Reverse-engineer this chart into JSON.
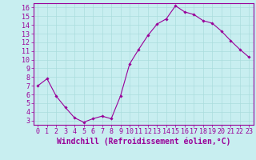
{
  "x": [
    0,
    1,
    2,
    3,
    4,
    5,
    6,
    7,
    8,
    9,
    10,
    11,
    12,
    13,
    14,
    15,
    16,
    17,
    18,
    19,
    20,
    21,
    22,
    23
  ],
  "y": [
    7.0,
    7.8,
    5.8,
    4.5,
    3.3,
    2.8,
    3.2,
    3.5,
    3.2,
    5.8,
    9.5,
    11.2,
    12.8,
    14.1,
    14.7,
    16.2,
    15.5,
    15.2,
    14.5,
    14.2,
    13.3,
    12.2,
    11.2,
    10.3
  ],
  "line_color": "#990099",
  "marker_color": "#990099",
  "bg_color": "#c8eef0",
  "grid_color": "#aadddd",
  "axis_color": "#990099",
  "xlabel": "Windchill (Refroidissement éolien,°C)",
  "xlim": [
    -0.5,
    23.5
  ],
  "ylim": [
    2.5,
    16.5
  ],
  "yticks": [
    3,
    4,
    5,
    6,
    7,
    8,
    9,
    10,
    11,
    12,
    13,
    14,
    15,
    16
  ],
  "xticks": [
    0,
    1,
    2,
    3,
    4,
    5,
    6,
    7,
    8,
    9,
    10,
    11,
    12,
    13,
    14,
    15,
    16,
    17,
    18,
    19,
    20,
    21,
    22,
    23
  ],
  "font_size": 6,
  "label_font_size": 7
}
